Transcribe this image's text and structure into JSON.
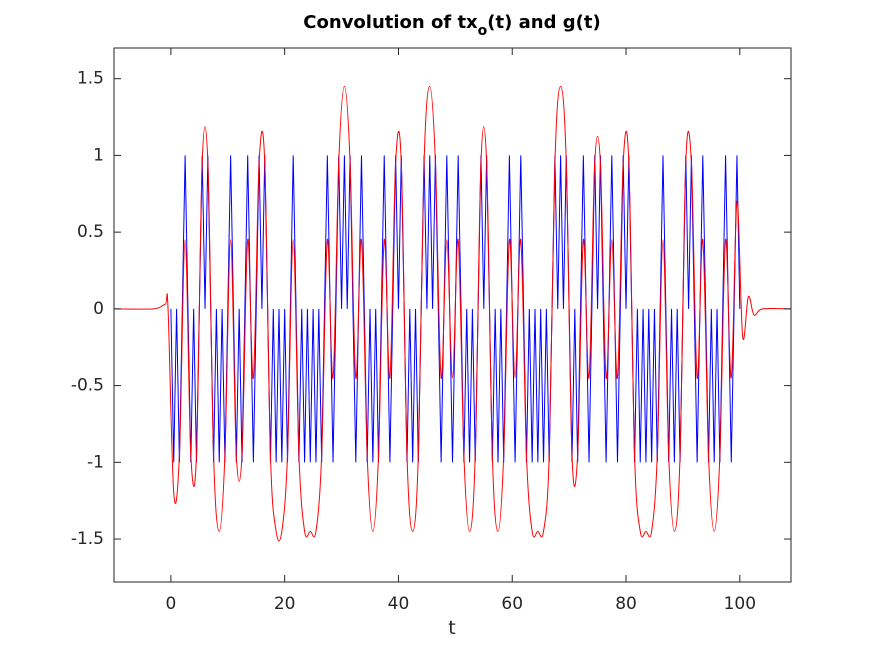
{
  "chart_data": {
    "type": "line",
    "title": [
      "Convolution of tx",
      "o",
      "(t) and g(t)"
    ],
    "xlabel": "t",
    "xlim": [
      -10,
      109
    ],
    "ylim": [
      -1.78,
      1.7
    ],
    "xticks": [
      0,
      20,
      40,
      60,
      80,
      100
    ],
    "yticks": [
      -1.5,
      -1,
      -0.5,
      0,
      0.5,
      1,
      1.5
    ],
    "grid": false,
    "series": [
      {
        "color": "#0000ff",
        "x": [
          0,
          0.5,
          1,
          1.5,
          2,
          2.5,
          3,
          3.5,
          4,
          4.5,
          5,
          5.5,
          6,
          6.5,
          7,
          7.5,
          8,
          8.5,
          9,
          9.5,
          10,
          10.5,
          11,
          11.5,
          12,
          12.5,
          13,
          13.5,
          14,
          14.5,
          15,
          15.5,
          16,
          16.5,
          17,
          17.5,
          18,
          18.5,
          19,
          19.5,
          20,
          20.5,
          21,
          21.5,
          22,
          22.5,
          23,
          23.5,
          24,
          24.5,
          25,
          25.5,
          26,
          26.5,
          27,
          27.5,
          28,
          28.5,
          29,
          29.5,
          30,
          30.5,
          31,
          31.5,
          32,
          32.5,
          33,
          33.5,
          34,
          34.5,
          35,
          35.5,
          36,
          36.5,
          37,
          37.5,
          38,
          38.5,
          39,
          39.5,
          40,
          40.5,
          41,
          41.5,
          42,
          42.5,
          43,
          43.5,
          44,
          44.5,
          45,
          45.5,
          46,
          46.5,
          47,
          47.5,
          48,
          48.5,
          49,
          49.5,
          50,
          50.5,
          51,
          51.5,
          52,
          52.5,
          53,
          53.5,
          54,
          54.5,
          55,
          55.5,
          56,
          56.5,
          57,
          57.5,
          58,
          58.5,
          59,
          59.5,
          60,
          60.5,
          61,
          61.5,
          62,
          62.5,
          63,
          63.5,
          64,
          64.5,
          65,
          65.5,
          66,
          66.5,
          67,
          67.5,
          68,
          68.5,
          69,
          69.5,
          70,
          70.5,
          71,
          71.5,
          72,
          72.5,
          73,
          73.5,
          74,
          74.5,
          75,
          75.5,
          76,
          76.5,
          77,
          77.5,
          78,
          78.5,
          79,
          79.5,
          80,
          80.5,
          81,
          81.5,
          82,
          82.5,
          83,
          83.5,
          84,
          84.5,
          85,
          85.5,
          86,
          86.5,
          87,
          87.5,
          88,
          88.5,
          89,
          89.5,
          90,
          90.5,
          91,
          91.5,
          92,
          92.5,
          93,
          93.5,
          94,
          94.5,
          95,
          95.5,
          96,
          96.5,
          97,
          97.5,
          98,
          98.5,
          99,
          99.5,
          100
        ],
        "values": [
          0,
          -1,
          0,
          -1,
          0,
          1,
          0,
          -1,
          0,
          -1,
          0,
          1,
          0,
          1,
          0,
          -1,
          0,
          -1,
          0,
          -1,
          0,
          1,
          0,
          -1,
          0,
          -1,
          0,
          1,
          0,
          -1,
          0,
          1,
          0,
          1,
          0,
          -1,
          0,
          -1,
          0,
          -1,
          0,
          -1,
          0,
          1,
          0,
          -1,
          0,
          -1,
          0,
          -1,
          0,
          -1,
          0,
          -1,
          0,
          1,
          0,
          -1,
          0,
          1,
          0,
          1,
          0,
          1,
          0,
          -1,
          0,
          1,
          0,
          -1,
          0,
          -1,
          0,
          -1,
          0,
          1,
          0,
          -1,
          0,
          1,
          0,
          1,
          0,
          -1,
          0,
          -1,
          0,
          -1,
          0,
          1,
          0,
          1,
          0,
          1,
          0,
          -1,
          0,
          1,
          0,
          -1,
          0,
          1,
          0,
          -1,
          0,
          -1,
          0,
          -1,
          0,
          1,
          0,
          1,
          0,
          -1,
          0,
          -1,
          0,
          -1,
          0,
          1,
          0,
          -1,
          0,
          1,
          0,
          -1,
          0,
          -1,
          0,
          -1,
          0,
          -1,
          0,
          -1,
          0,
          1,
          0,
          1,
          0,
          1,
          0,
          -1,
          0,
          -1,
          0,
          1,
          0,
          -1,
          0,
          1,
          0,
          1,
          0,
          -1,
          0,
          1,
          0,
          -1,
          0,
          1,
          0,
          1,
          0,
          -1,
          0,
          -1,
          0,
          -1,
          0,
          -1,
          0,
          -1,
          0,
          1,
          0,
          -1,
          0,
          -1,
          0,
          -1,
          0,
          1,
          0,
          1,
          0,
          -1,
          0,
          1,
          0,
          -1,
          0,
          -1,
          0,
          -1,
          0,
          1,
          0,
          -1,
          0,
          1,
          0
        ]
      },
      {
        "color": "#ff0000",
        "x": [
          -10,
          -3,
          -1,
          -0.5,
          0.5,
          1.5,
          2.5,
          3.5,
          4.5,
          5.5,
          6.5,
          7.5,
          8.5,
          9.5,
          10.5,
          11.5,
          12.5,
          13.5,
          14.5,
          15.5,
          16.5,
          17.5,
          18.5,
          19.5,
          20.5,
          21.5,
          22.5,
          23.5,
          24.5,
          25.5,
          26.5,
          27.5,
          28.5,
          29.5,
          30.5,
          31.5,
          32.5,
          33.5,
          34.5,
          35.5,
          36.5,
          37.5,
          38.5,
          39.5,
          40.5,
          41.5,
          42.5,
          43.5,
          44.5,
          45.5,
          46.5,
          47.5,
          48.5,
          49.5,
          50.5,
          51.5,
          52.5,
          53.5,
          54.5,
          55.5,
          56.5,
          57.5,
          58.5,
          59.5,
          60.5,
          61.5,
          62.5,
          63.5,
          64.5,
          65.5,
          66.5,
          67.5,
          68.5,
          69.5,
          70.5,
          71.5,
          72.5,
          73.5,
          74.5,
          75.5,
          76.5,
          77.5,
          78.5,
          79.5,
          80.5,
          81.5,
          82.5,
          83.5,
          84.5,
          85.5,
          86.5,
          87.5,
          88.5,
          89.5,
          90.5,
          91.5,
          92.5,
          93.5,
          94.5,
          95.5,
          96.5,
          97.5,
          98.5,
          99.5,
          100.5,
          101.5,
          102.5,
          104,
          109
        ],
        "values": [
          0,
          0,
          0.03,
          0,
          -1.2,
          -0.95,
          0.45,
          -0.95,
          -0.95,
          0.95,
          0.95,
          -0.95,
          -1.45,
          -0.95,
          0.45,
          -0.95,
          -0.95,
          0.45,
          -0.45,
          0.95,
          0.95,
          -0.95,
          -1.45,
          -1.45,
          -0.95,
          0.45,
          -0.95,
          -1.45,
          -1.45,
          -1.45,
          -0.95,
          0.45,
          -0.45,
          0.95,
          1.45,
          0.95,
          -0.45,
          0.45,
          -0.95,
          -1.45,
          -0.95,
          0.45,
          -0.45,
          0.95,
          0.95,
          -0.95,
          -1.45,
          -0.95,
          0.95,
          1.45,
          0.95,
          -0.45,
          0.45,
          -0.45,
          0.45,
          -0.95,
          -1.45,
          -0.95,
          0.95,
          0.95,
          -0.95,
          -1.45,
          -0.95,
          0.45,
          -0.45,
          0.45,
          -0.95,
          -1.45,
          -1.45,
          -1.45,
          -0.95,
          0.95,
          1.45,
          0.95,
          -0.95,
          -0.95,
          0.45,
          -0.45,
          0.95,
          0.95,
          -0.45,
          0.45,
          -0.45,
          0.95,
          0.95,
          -0.95,
          -1.45,
          -1.45,
          -1.45,
          -0.95,
          0.45,
          -0.95,
          -1.45,
          -0.95,
          0.95,
          0.95,
          -0.45,
          0.45,
          -0.95,
          -1.45,
          -0.95,
          0.45,
          -0.45,
          0.7,
          -0.18,
          0.08,
          -0.04,
          0,
          0
        ]
      }
    ]
  }
}
